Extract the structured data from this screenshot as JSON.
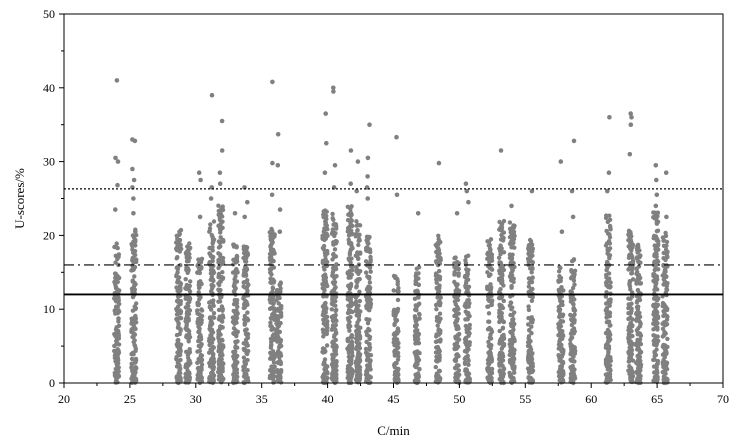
{
  "chart_data": {
    "type": "scatter",
    "title": "",
    "xlabel": "C/min",
    "ylabel": "U-scores/%",
    "xlim": [
      20,
      70
    ],
    "ylim": [
      0,
      50
    ],
    "xticks": [
      20,
      25,
      30,
      35,
      40,
      45,
      50,
      55,
      60,
      65,
      70
    ],
    "yticks": [
      0,
      10,
      20,
      30,
      40,
      50
    ],
    "grid": false,
    "legend": "none",
    "point_color": "#808080",
    "reference_lines": [
      {
        "y": 26.3,
        "style": "dotted",
        "color": "#000000"
      },
      {
        "y": 16.0,
        "style": "dash-dot",
        "color": "#000000"
      },
      {
        "y": 12.0,
        "style": "solid",
        "color": "#000000"
      }
    ],
    "columns": [
      {
        "x": 24.0,
        "ymax": 19.0,
        "outliers": [
          41.0,
          30.5,
          30.0,
          26.8,
          23.5
        ]
      },
      {
        "x": 25.3,
        "ymax": 21.0,
        "outliers": [
          33.0,
          32.8,
          29.0,
          27.5,
          26.5,
          25.0,
          23.0
        ]
      },
      {
        "x": 28.7,
        "ymax": 21.0,
        "outliers": []
      },
      {
        "x": 29.4,
        "ymax": 19.0,
        "outliers": []
      },
      {
        "x": 30.3,
        "ymax": 17.5,
        "outliers": [
          28.5,
          27.5,
          22.5
        ]
      },
      {
        "x": 31.2,
        "ymax": 22.0,
        "outliers": [
          39.0,
          26.5,
          25.0
        ]
      },
      {
        "x": 31.9,
        "ymax": 24.5,
        "outliers": [
          35.5,
          31.5,
          28.5,
          27.0
        ]
      },
      {
        "x": 33.0,
        "ymax": 19.0,
        "outliers": [
          23.0
        ]
      },
      {
        "x": 33.8,
        "ymax": 18.5,
        "outliers": [
          26.5,
          24.5,
          22.5
        ]
      },
      {
        "x": 35.8,
        "ymax": 21.0,
        "outliers": [
          40.8,
          29.8,
          25.5
        ]
      },
      {
        "x": 36.3,
        "ymax": 14.0,
        "outliers": [
          33.7,
          29.5,
          23.5,
          20.5
        ]
      },
      {
        "x": 39.8,
        "ymax": 23.5,
        "outliers": [
          36.5,
          32.5,
          28.5
        ]
      },
      {
        "x": 40.5,
        "ymax": 23.0,
        "outliers": [
          40.0,
          39.5,
          29.5,
          26.5
        ]
      },
      {
        "x": 41.7,
        "ymax": 24.0,
        "outliers": [
          31.5,
          27.0
        ]
      },
      {
        "x": 42.3,
        "ymax": 22.0,
        "outliers": [
          30.0,
          26.0
        ]
      },
      {
        "x": 43.1,
        "ymax": 20.0,
        "outliers": [
          35.0,
          30.5,
          28.0,
          26.5,
          25.0
        ]
      },
      {
        "x": 45.2,
        "ymax": 14.5,
        "outliers": [
          33.3,
          25.5
        ]
      },
      {
        "x": 46.8,
        "ymax": 16.0,
        "outliers": [
          23.0
        ]
      },
      {
        "x": 48.4,
        "ymax": 20.0,
        "outliers": [
          29.8
        ]
      },
      {
        "x": 49.8,
        "ymax": 17.0,
        "outliers": [
          23.0
        ]
      },
      {
        "x": 50.6,
        "ymax": 17.5,
        "outliers": [
          27.0,
          26.0,
          24.5
        ]
      },
      {
        "x": 52.3,
        "ymax": 19.5,
        "outliers": []
      },
      {
        "x": 53.2,
        "ymax": 22.0,
        "outliers": [
          31.5
        ]
      },
      {
        "x": 54.0,
        "ymax": 22.0,
        "outliers": [
          24.0
        ]
      },
      {
        "x": 55.4,
        "ymax": 19.5,
        "outliers": [
          26.0
        ]
      },
      {
        "x": 57.7,
        "ymax": 16.0,
        "outliers": [
          30.0,
          20.5
        ]
      },
      {
        "x": 58.6,
        "ymax": 17.0,
        "outliers": [
          32.8,
          26.0,
          22.5
        ]
      },
      {
        "x": 61.3,
        "ymax": 23.0,
        "outliers": [
          36.0,
          28.5,
          26.0
        ]
      },
      {
        "x": 63.0,
        "ymax": 21.0,
        "outliers": [
          36.5,
          36.0,
          35.0,
          31.0
        ]
      },
      {
        "x": 63.6,
        "ymax": 19.0,
        "outliers": [
          18.0
        ]
      },
      {
        "x": 64.9,
        "ymax": 23.5,
        "outliers": [
          29.5,
          27.5,
          25.5,
          24.0
        ]
      },
      {
        "x": 65.6,
        "ymax": 20.5,
        "outliers": [
          28.5,
          22.5
        ]
      }
    ]
  }
}
